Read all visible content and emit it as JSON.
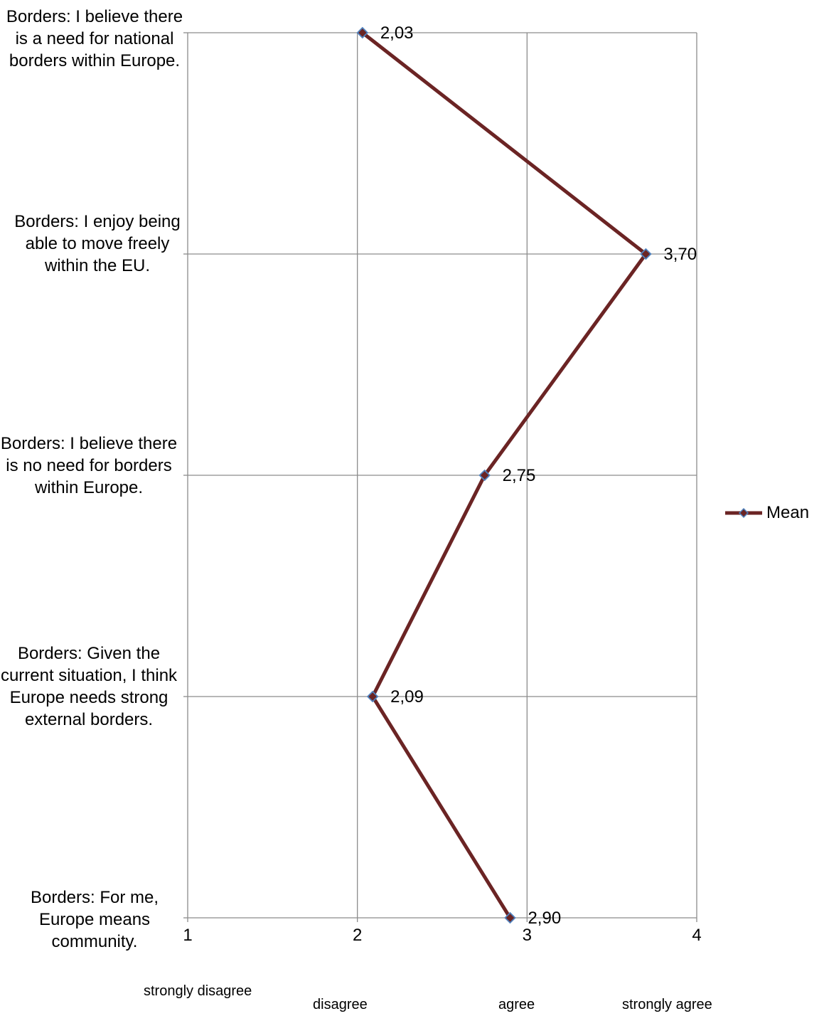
{
  "chart_data": {
    "type": "line",
    "orientation": "horizontal",
    "categories": [
      "Borders: I believe there is a need for national borders within Europe.",
      "Borders: I enjoy being able to move freely within the EU.",
      "Borders: I believe there is no need for borders within Europe.",
      "Borders: Given the current situation, I think Europe needs strong external borders.",
      "Borders: For me, Europe means community."
    ],
    "series": [
      {
        "name": "Mean",
        "values": [
          2.03,
          3.7,
          2.75,
          2.09,
          2.9
        ],
        "labels": [
          "2,03",
          "3,70",
          "2,75",
          "2,09",
          "2,90"
        ],
        "color": "#6b2424",
        "marker": "diamond",
        "marker_color": "#4f81bd"
      }
    ],
    "xlim": [
      1,
      4
    ],
    "xticks": [
      "1",
      "2",
      "3",
      "4"
    ],
    "scale_labels": [
      "strongly disagree",
      "disagree",
      "agree",
      "strongly agree"
    ],
    "grid": true,
    "legend": "right"
  }
}
